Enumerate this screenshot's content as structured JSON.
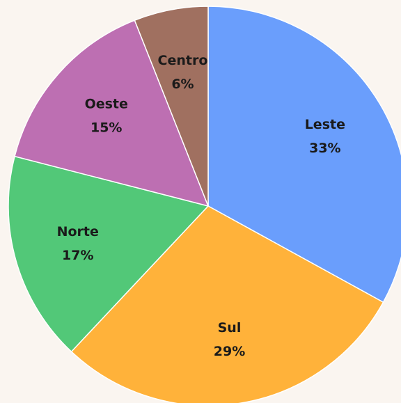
{
  "chart_data": {
    "type": "pie",
    "categories": [
      "Leste",
      "Sul",
      "Norte",
      "Oeste",
      "Centro"
    ],
    "values": [
      33,
      29,
      17,
      15,
      6
    ],
    "value_labels": [
      "33%",
      "29%",
      "17%",
      "15%",
      "6%"
    ],
    "colors": [
      "#6a9efc",
      "#ffb23a",
      "#52c878",
      "#bd6fb2",
      "#a07060"
    ]
  }
}
